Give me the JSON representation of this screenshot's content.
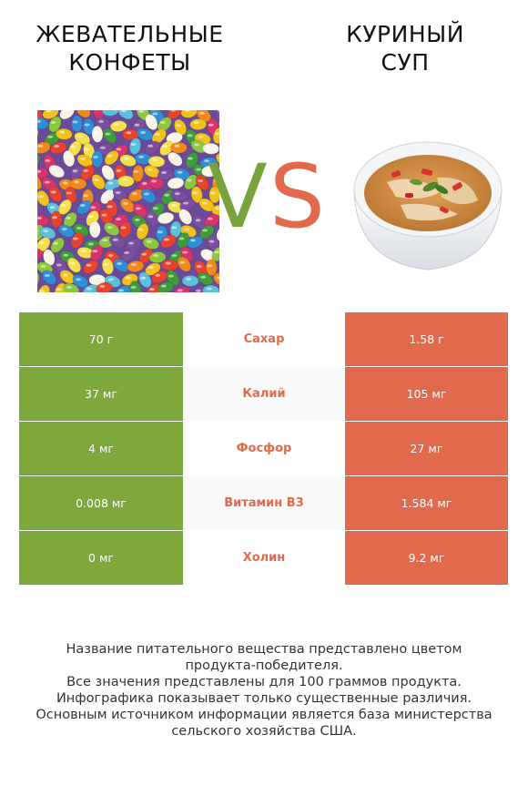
{
  "left_food": {
    "title_lines": [
      "ЖЕВАТЕЛЬНЫЕ",
      "КОНФЕТЫ"
    ],
    "color": "#7da93c"
  },
  "right_food": {
    "title_lines": [
      "КУРИНЫЙ",
      "СУП"
    ],
    "color": "#e26a4c"
  },
  "vs": {
    "v": "V",
    "s": "S"
  },
  "rows": [
    {
      "nutrient": "Сахар",
      "left": "70 г",
      "right": "1.58 г"
    },
    {
      "nutrient": "Калий",
      "left": "37 мг",
      "right": "105 мг"
    },
    {
      "nutrient": "Фосфор",
      "left": "4 мг",
      "right": "27 мг"
    },
    {
      "nutrient": "Витамин B3",
      "left": "0.008 мг",
      "right": "1.584 мг"
    },
    {
      "nutrient": "Холин",
      "left": "0 мг",
      "right": "9.2 мг"
    }
  ],
  "footer": [
    "Название питательного вещества представлено цветом",
    "продукта-победителя.",
    "Все значения представлены для 100 граммов продукта.",
    "Инфографика показывает только существенные различия.",
    "Основным источником информации является база министерства",
    "сельского хозяйства США."
  ]
}
